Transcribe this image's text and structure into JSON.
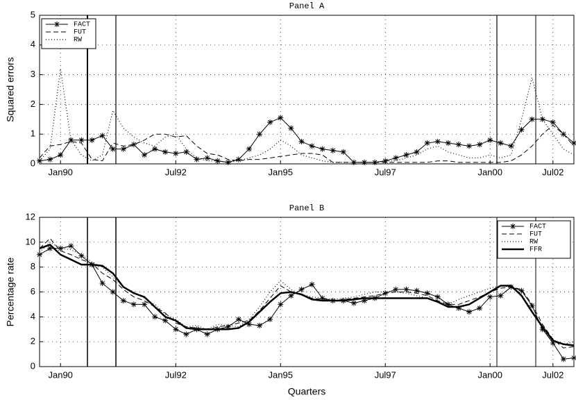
{
  "chart_data": [
    {
      "type": "line",
      "title": "Panel A",
      "y_label": "Squared errors",
      "categories": [
        null,
        null,
        "Jan90",
        null,
        null,
        null,
        null,
        null,
        null,
        null,
        null,
        null,
        null,
        "Jul92",
        null,
        null,
        null,
        null,
        null,
        null,
        null,
        null,
        null,
        "Jan95",
        null,
        null,
        null,
        null,
        null,
        null,
        null,
        null,
        null,
        "Jul97",
        null,
        null,
        null,
        null,
        null,
        null,
        null,
        null,
        null,
        "Jan00",
        null,
        null,
        null,
        null,
        null,
        "Jul02",
        null,
        null
      ],
      "ylim": [
        0,
        5
      ],
      "yticks": [
        0,
        1,
        2,
        3,
        4,
        5
      ],
      "grid": true,
      "legend": "upper left",
      "series": [
        {
          "name": "FACT",
          "color": "#000000",
          "linestyle": "solid",
          "marker": "star",
          "values": [
            0.1,
            0.15,
            0.3,
            0.8,
            0.8,
            0.8,
            0.95,
            0.5,
            0.5,
            0.65,
            0.3,
            0.5,
            0.4,
            0.35,
            0.4,
            0.15,
            0.2,
            0.1,
            0.05,
            0.15,
            0.5,
            1.0,
            1.4,
            1.55,
            1.2,
            0.75,
            0.6,
            0.5,
            0.45,
            0.4,
            0.05,
            0.05,
            0.05,
            0.1,
            0.2,
            0.3,
            0.4,
            0.7,
            0.75,
            0.7,
            0.65,
            0.6,
            0.65,
            0.8,
            0.7,
            0.6,
            1.15,
            1.5,
            1.5,
            1.4,
            1.0,
            0.7
          ]
        },
        {
          "name": "FUT",
          "color": "#000000",
          "linestyle": "dashed",
          "values": [
            0.2,
            0.6,
            0.65,
            0.75,
            0.7,
            0.15,
            0.1,
            0.7,
            0.6,
            0.65,
            0.8,
            1.0,
            1.0,
            0.9,
            0.95,
            0.6,
            0.35,
            0.3,
            0.15,
            0.1,
            0.15,
            0.15,
            0.2,
            0.25,
            0.3,
            0.35,
            0.35,
            0.3,
            0.05,
            0.05,
            0.05,
            0.05,
            0.05,
            0.05,
            0.05,
            0.05,
            0.05,
            0.05,
            0.1,
            0.1,
            0.05,
            0.05,
            0.05,
            0.05,
            0.05,
            0.1,
            0.3,
            0.6,
            1.0,
            1.3,
            1.0,
            0.6
          ]
        },
        {
          "name": "RW",
          "color": "#000000",
          "linestyle": "dotted",
          "values": [
            0.1,
            0.5,
            3.2,
            0.8,
            0.3,
            0.1,
            0.3,
            1.8,
            1.2,
            0.9,
            0.7,
            0.6,
            0.9,
            1.0,
            0.5,
            0.2,
            0.1,
            0.1,
            0.05,
            0.1,
            0.2,
            0.3,
            0.5,
            0.8,
            0.6,
            0.3,
            0.2,
            0.1,
            0.05,
            0.05,
            0.05,
            0.05,
            0.05,
            0.1,
            0.1,
            0.2,
            0.3,
            0.5,
            0.6,
            0.4,
            0.3,
            0.2,
            0.2,
            0.3,
            0.2,
            0.3,
            1.5,
            2.9,
            1.5,
            1.0,
            0.5,
            0.3
          ]
        }
      ]
    },
    {
      "type": "line",
      "title": "Panel B",
      "y_label": "Percentage rate",
      "x_label": "Quarters",
      "categories": [
        null,
        null,
        "Jan90",
        null,
        null,
        null,
        null,
        null,
        null,
        null,
        null,
        null,
        null,
        "Jul92",
        null,
        null,
        null,
        null,
        null,
        null,
        null,
        null,
        null,
        "Jan95",
        null,
        null,
        null,
        null,
        null,
        null,
        null,
        null,
        null,
        "Jul97",
        null,
        null,
        null,
        null,
        null,
        null,
        null,
        null,
        null,
        "Jan00",
        null,
        null,
        null,
        null,
        null,
        "Jul02",
        null,
        null
      ],
      "ylim": [
        0,
        12
      ],
      "yticks": [
        0,
        2,
        4,
        6,
        8,
        10,
        12
      ],
      "grid": true,
      "legend": "upper right",
      "series": [
        {
          "name": "FACT",
          "color": "#000000",
          "linestyle": "solid",
          "marker": "star",
          "values": [
            9.0,
            9.5,
            9.5,
            9.7,
            8.9,
            8.2,
            6.7,
            6.0,
            5.3,
            5.0,
            5.0,
            4.0,
            3.7,
            3.0,
            2.6,
            3.0,
            2.6,
            3.0,
            3.2,
            3.8,
            3.4,
            3.3,
            3.8,
            5.0,
            5.7,
            6.2,
            6.6,
            5.5,
            5.3,
            5.3,
            5.1,
            5.3,
            5.5,
            5.9,
            6.2,
            6.2,
            6.1,
            5.9,
            5.6,
            5.0,
            4.7,
            4.4,
            4.7,
            5.6,
            5.7,
            6.4,
            6.1,
            4.9,
            3.0,
            1.9,
            0.6,
            0.7
          ]
        },
        {
          "name": "FUT",
          "color": "#000000",
          "linestyle": "dashed",
          "values": [
            9.5,
            10.3,
            9.3,
            9.0,
            8.6,
            8.3,
            7.5,
            7.0,
            6.2,
            5.6,
            5.3,
            4.8,
            4.3,
            3.5,
            3.2,
            3.1,
            3.0,
            3.2,
            3.3,
            3.5,
            3.7,
            4.5,
            5.5,
            6.5,
            6.0,
            5.8,
            5.5,
            5.4,
            5.3,
            5.4,
            5.5,
            5.6,
            5.7,
            5.9,
            6.0,
            6.0,
            5.9,
            5.7,
            5.3,
            5.0,
            5.0,
            5.3,
            5.6,
            6.0,
            6.3,
            6.4,
            6.2,
            5.0,
            3.4,
            2.2,
            1.5,
            1.6
          ]
        },
        {
          "name": "RW",
          "color": "#000000",
          "linestyle": "dotted",
          "values": [
            9.2,
            10.0,
            9.5,
            9.4,
            9.0,
            8.4,
            8.0,
            7.2,
            6.4,
            6.0,
            5.5,
            5.0,
            4.2,
            3.8,
            3.2,
            3.3,
            3.0,
            3.4,
            3.3,
            3.2,
            3.8,
            4.8,
            6.0,
            6.9,
            6.2,
            5.8,
            5.6,
            5.5,
            5.4,
            5.5,
            5.6,
            5.8,
            6.0,
            6.0,
            6.0,
            5.9,
            5.7,
            5.5,
            5.2,
            5.0,
            5.4,
            5.7,
            6.0,
            6.3,
            6.5,
            6.4,
            5.8,
            4.5,
            3.0,
            2.0,
            1.8,
            2.0
          ]
        },
        {
          "name": "FFR",
          "color": "#000000",
          "linestyle": "thick",
          "values": [
            9.5,
            9.8,
            9.0,
            8.6,
            8.2,
            8.2,
            8.1,
            7.5,
            6.4,
            5.9,
            5.6,
            4.8,
            4.0,
            3.7,
            3.1,
            3.0,
            3.0,
            3.0,
            3.0,
            3.1,
            3.6,
            4.4,
            5.2,
            5.9,
            6.0,
            5.8,
            5.4,
            5.3,
            5.3,
            5.3,
            5.4,
            5.5,
            5.5,
            5.5,
            5.5,
            5.5,
            5.5,
            5.5,
            5.2,
            4.8,
            4.8,
            5.0,
            5.5,
            6.0,
            6.5,
            6.5,
            5.7,
            4.4,
            3.2,
            2.1,
            1.8,
            1.7
          ]
        }
      ]
    }
  ]
}
